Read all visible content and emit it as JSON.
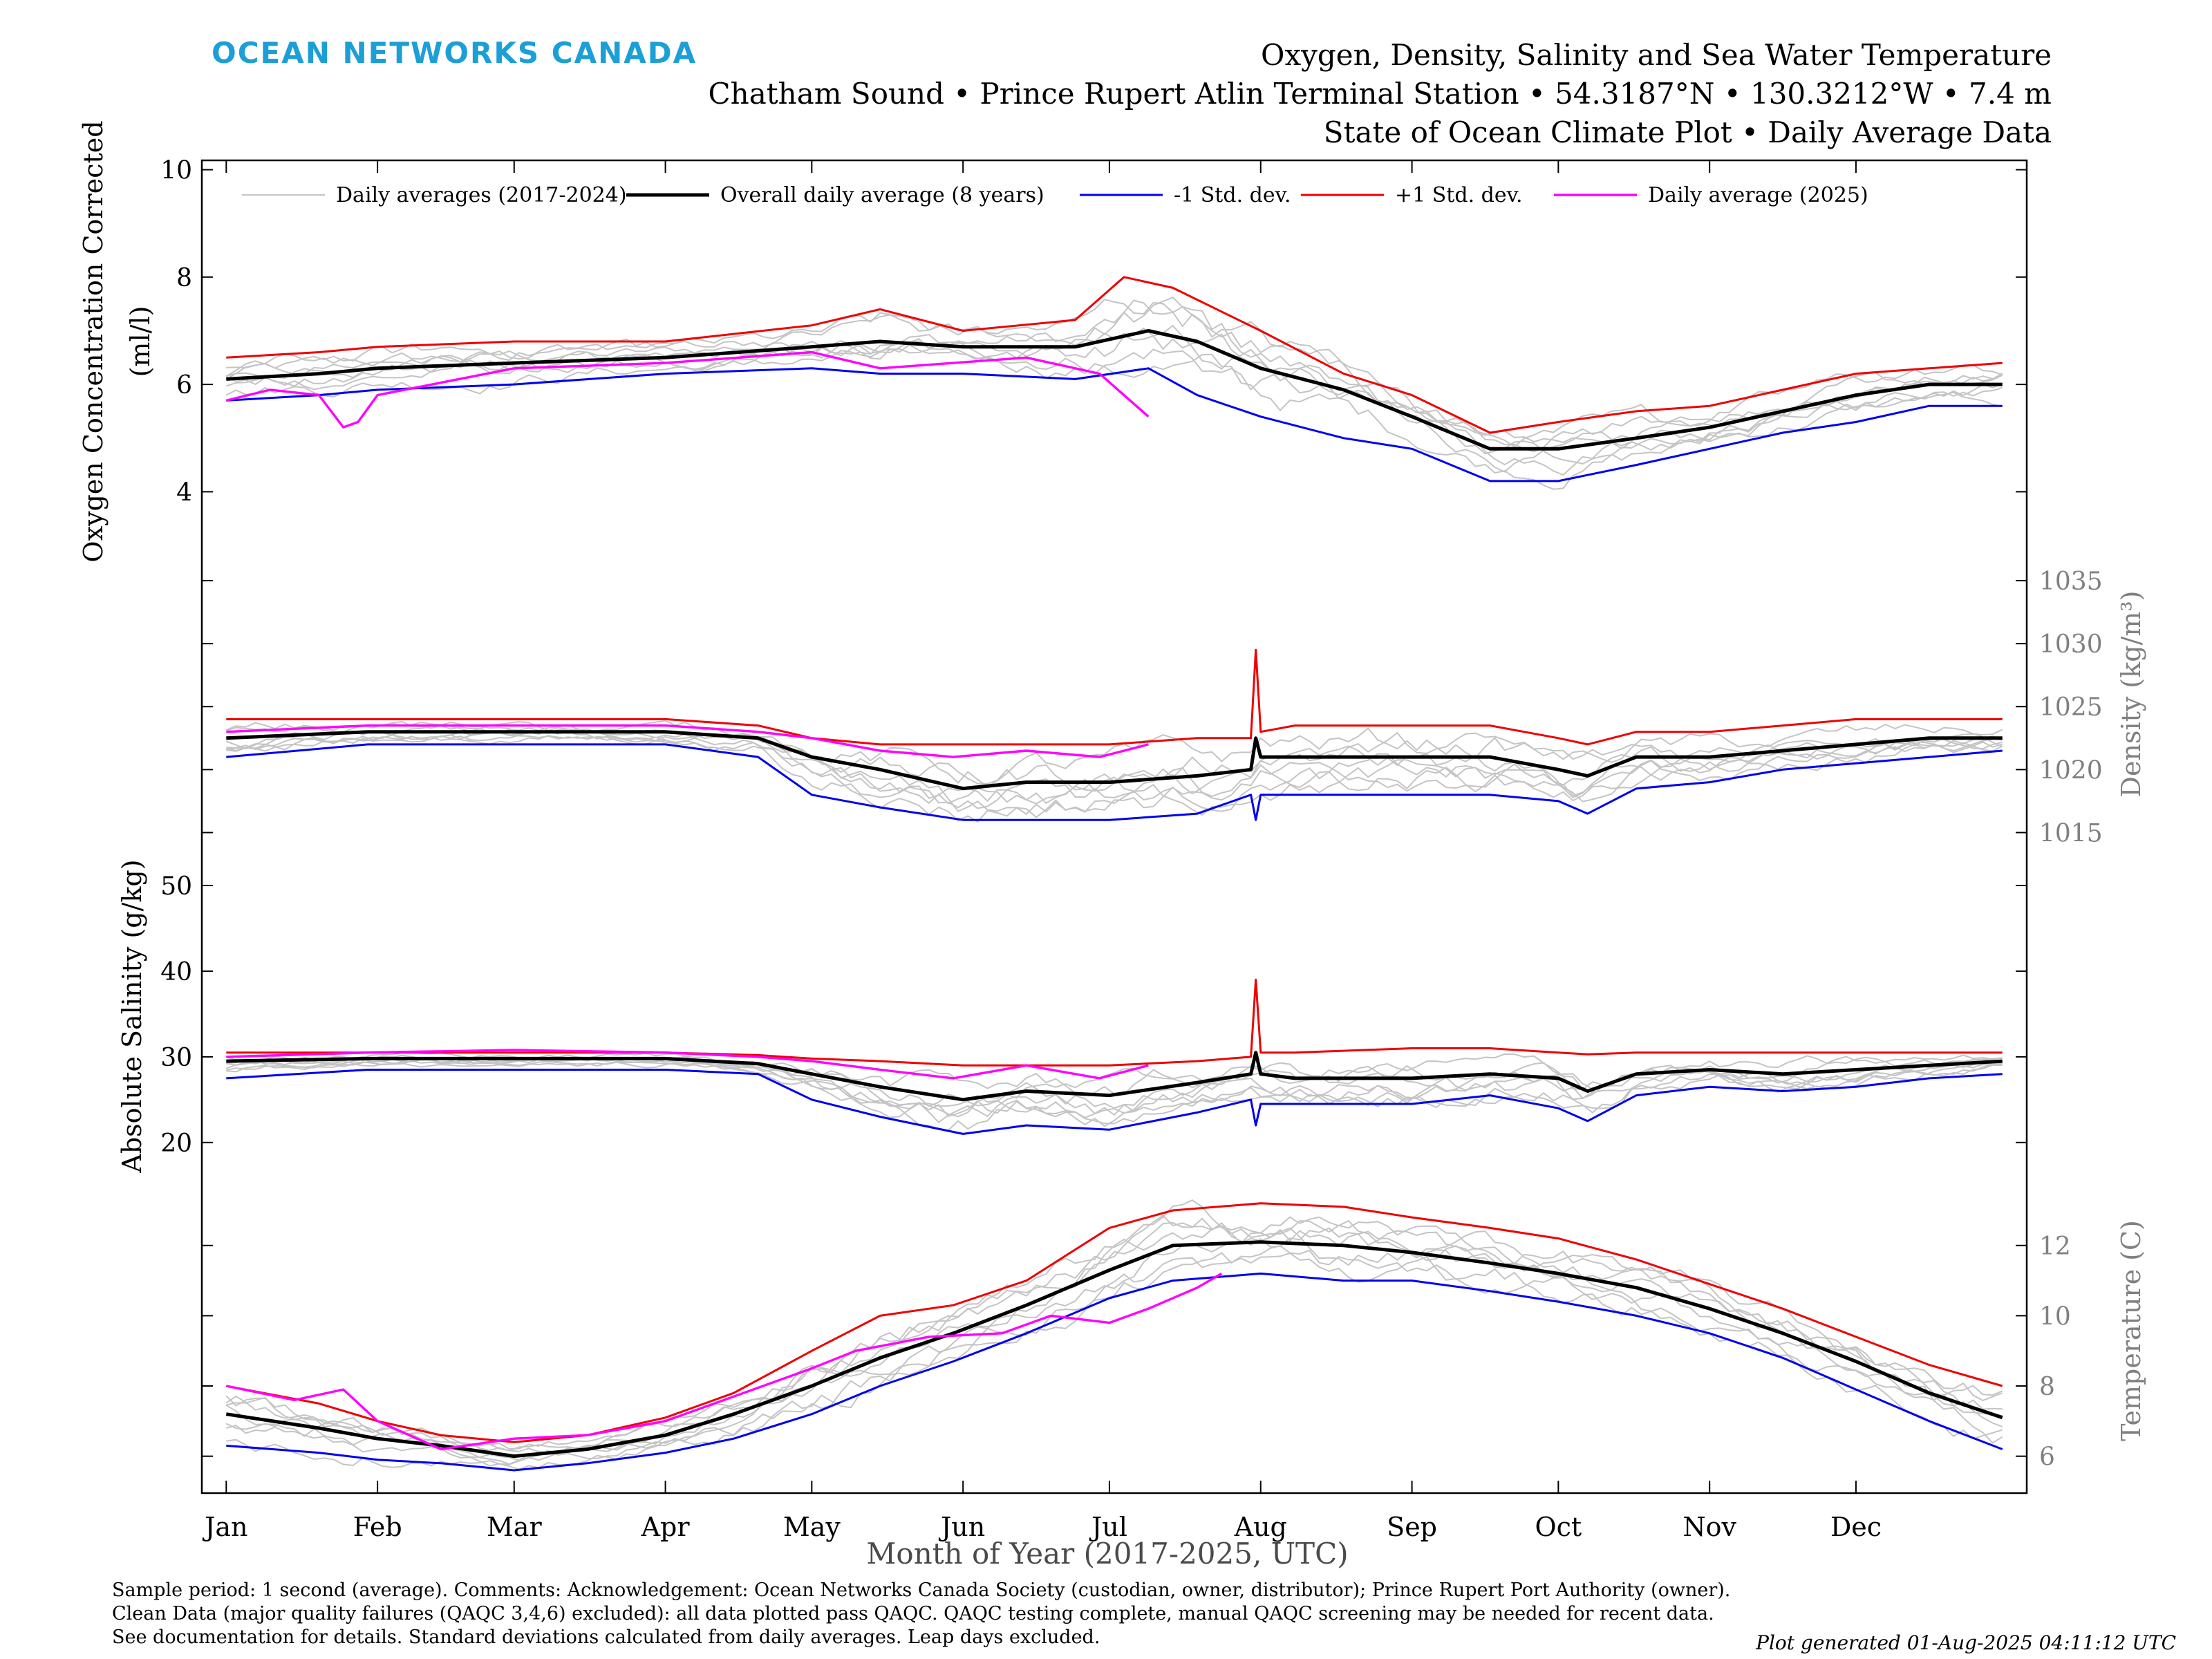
{
  "header": {
    "logo": "OCEAN NETWORKS CANADA",
    "title_line1": "Oxygen, Density, Salinity and Sea Water Temperature",
    "title_line2": "Chatham Sound • Prince Rupert Atlin Terminal Station • 54.3187°N • 130.3212°W • 7.4 m",
    "title_line3": "State of Ocean Climate Plot • Daily Average Data"
  },
  "footer": {
    "line1": "Sample period: 1 second (average). Comments: Acknowledgement: Ocean Networks Canada Society (custodian, owner, distributor); Prince Rupert Port Authority (owner).",
    "line2": "Clean Data (major quality failures (QAQC 3,4,6) excluded): all data plotted pass QAQC. QAQC testing complete, manual QAQC screening may be needed for recent data.",
    "line3": "See documentation for details. Standard deviations calculated from daily averages. Leap days excluded.",
    "generated": "Plot generated 01-Aug-2025 04:11:12 UTC"
  },
  "colors": {
    "historical": "#c4c4c4",
    "mean": "#000000",
    "minus_std": "#0000ee",
    "plus_std": "#ee0000",
    "current": "#ff00ff",
    "right_axis_text": "#808080",
    "logo": "#1c9fd6"
  },
  "chart_data": {
    "type": "line",
    "xlabel": "Month of Year (2017-2025, UTC)",
    "x_ticks": [
      "Jan",
      "Feb",
      "Mar",
      "Apr",
      "May",
      "Jun",
      "Jul",
      "Aug",
      "Sep",
      "Oct",
      "Nov",
      "Dec"
    ],
    "x_tick_days": [
      1,
      32,
      60,
      91,
      121,
      152,
      182,
      213,
      244,
      274,
      305,
      335
    ],
    "xlim": [
      -4,
      370
    ],
    "legend": {
      "placement": "top",
      "entries": [
        "Daily averages (2017-2024)",
        "Overall daily average (8 years)",
        "-1 Std. dev.",
        "+1 Std. dev.",
        "Daily average (2025)"
      ]
    },
    "panels": [
      {
        "id": "oxygen",
        "axis_side": "left",
        "ylabel_line1": "Oxygen Concentration Corrected",
        "ylabel_line2": "(ml/l)",
        "yticks": [
          4,
          6,
          8,
          10
        ],
        "ylim": [
          3.4,
          10.2
        ],
        "series": [
          {
            "role": "mean",
            "x": [
              1,
              20,
              32,
              60,
              91,
              121,
              135,
              152,
              175,
              190,
              200,
              213,
              230,
              244,
              260,
              274,
              290,
              305,
              320,
              335,
              350,
              365
            ],
            "y": [
              6.1,
              6.2,
              6.3,
              6.4,
              6.5,
              6.7,
              6.8,
              6.7,
              6.7,
              7.0,
              6.8,
              6.3,
              5.9,
              5.4,
              4.8,
              4.8,
              5.0,
              5.2,
              5.5,
              5.8,
              6.0,
              6.0
            ]
          },
          {
            "role": "minus_std",
            "x": [
              1,
              20,
              32,
              60,
              91,
              121,
              135,
              152,
              175,
              190,
              200,
              213,
              230,
              244,
              260,
              274,
              290,
              305,
              320,
              335,
              350,
              365
            ],
            "y": [
              5.7,
              5.8,
              5.9,
              6.0,
              6.2,
              6.3,
              6.2,
              6.2,
              6.1,
              6.3,
              5.8,
              5.4,
              5.0,
              4.8,
              4.2,
              4.2,
              4.5,
              4.8,
              5.1,
              5.3,
              5.6,
              5.6
            ]
          },
          {
            "role": "plus_std",
            "x": [
              1,
              20,
              32,
              60,
              91,
              121,
              135,
              152,
              175,
              185,
              195,
              213,
              230,
              244,
              260,
              274,
              290,
              305,
              320,
              335,
              350,
              365
            ],
            "y": [
              6.5,
              6.6,
              6.7,
              6.8,
              6.8,
              7.1,
              7.4,
              7.0,
              7.2,
              8.0,
              7.8,
              7.0,
              6.2,
              5.8,
              5.1,
              5.3,
              5.5,
              5.6,
              5.9,
              6.2,
              6.3,
              6.4
            ]
          },
          {
            "role": "current",
            "x": [
              1,
              10,
              20,
              25,
              28,
              32,
              60,
              91,
              121,
              135,
              150,
              165,
              180,
              190
            ],
            "y": [
              5.7,
              5.9,
              5.8,
              5.2,
              5.3,
              5.8,
              6.3,
              6.4,
              6.6,
              6.3,
              6.4,
              6.5,
              6.2,
              5.4
            ]
          }
        ]
      },
      {
        "id": "density",
        "axis_side": "right",
        "ylabel": "Density (kg/m³)",
        "yticks": [
          1015,
          1020,
          1025,
          1030,
          1035
        ],
        "ylim": [
          1012.5,
          1039.5
        ],
        "series": [
          {
            "role": "mean",
            "x": [
              1,
              30,
              60,
              91,
              110,
              121,
              135,
              152,
              165,
              182,
              200,
              211,
              212,
              213,
              220,
              244,
              260,
              274,
              280,
              290,
              305,
              320,
              335,
              350,
              365
            ],
            "y": [
              1022.5,
              1023,
              1023,
              1023,
              1022.5,
              1021,
              1020,
              1018.5,
              1019,
              1019,
              1019.5,
              1020,
              1022.5,
              1021,
              1021,
              1021,
              1021,
              1020,
              1019.5,
              1021,
              1021,
              1021.5,
              1022,
              1022.5,
              1022.5
            ]
          },
          {
            "role": "minus_std",
            "x": [
              1,
              30,
              60,
              91,
              110,
              121,
              135,
              152,
              165,
              182,
              200,
              211,
              212,
              213,
              220,
              244,
              260,
              274,
              280,
              290,
              305,
              320,
              335,
              350,
              365
            ],
            "y": [
              1021,
              1022,
              1022,
              1022,
              1021,
              1018,
              1017,
              1016,
              1016,
              1016,
              1016.5,
              1018,
              1016,
              1018,
              1018,
              1018,
              1018,
              1017.5,
              1016.5,
              1018.5,
              1019,
              1020,
              1020.5,
              1021,
              1021.5
            ]
          },
          {
            "role": "plus_std",
            "x": [
              1,
              30,
              60,
              91,
              110,
              121,
              135,
              152,
              165,
              182,
              200,
              211,
              212,
              213,
              220,
              244,
              260,
              274,
              280,
              290,
              305,
              320,
              335,
              350,
              365
            ],
            "y": [
              1024,
              1024,
              1024,
              1024,
              1023.5,
              1022.5,
              1022,
              1022,
              1022,
              1022,
              1022.5,
              1022.5,
              1029.5,
              1023,
              1023.5,
              1023.5,
              1023.5,
              1022.5,
              1022,
              1023,
              1023,
              1023.5,
              1024,
              1024,
              1024
            ]
          },
          {
            "role": "current",
            "x": [
              1,
              30,
              60,
              91,
              110,
              121,
              135,
              150,
              165,
              180,
              190
            ],
            "y": [
              1023,
              1023.5,
              1023.5,
              1023.5,
              1023,
              1022.5,
              1021.5,
              1021,
              1021.5,
              1021,
              1022
            ]
          }
        ]
      },
      {
        "id": "salinity",
        "axis_side": "left",
        "ylabel": "Absolute Salinity (g/kg)",
        "yticks": [
          20,
          30,
          40,
          50
        ],
        "ylim": [
          17,
          52.5
        ],
        "series": [
          {
            "role": "mean",
            "x": [
              1,
              30,
              60,
              91,
              110,
              121,
              135,
              152,
              165,
              182,
              200,
              211,
              212,
              213,
              220,
              244,
              260,
              274,
              280,
              290,
              305,
              320,
              335,
              350,
              365
            ],
            "y": [
              29.5,
              29.8,
              29.8,
              29.8,
              29.2,
              28,
              26.5,
              25,
              26,
              25.5,
              27,
              28,
              30.5,
              28,
              27.5,
              27.5,
              28,
              27.5,
              26,
              28,
              28.5,
              28,
              28.5,
              29,
              29.5
            ]
          },
          {
            "role": "minus_std",
            "x": [
              1,
              30,
              60,
              91,
              110,
              121,
              135,
              152,
              165,
              182,
              200,
              211,
              212,
              213,
              220,
              244,
              260,
              274,
              280,
              290,
              305,
              320,
              335,
              350,
              365
            ],
            "y": [
              27.5,
              28.5,
              28.5,
              28.5,
              28,
              25,
              23,
              21,
              22,
              21.5,
              23.5,
              25,
              22,
              24.5,
              24.5,
              24.5,
              25.5,
              24,
              22.5,
              25.5,
              26.5,
              26,
              26.5,
              27.5,
              28
            ]
          },
          {
            "role": "plus_std",
            "x": [
              1,
              30,
              60,
              91,
              110,
              121,
              135,
              152,
              165,
              182,
              200,
              211,
              212,
              213,
              220,
              244,
              260,
              274,
              280,
              290,
              305,
              320,
              335,
              350,
              365
            ],
            "y": [
              30.5,
              30.5,
              30.5,
              30.5,
              30.2,
              29.8,
              29.5,
              29,
              29,
              29,
              29.5,
              30,
              39,
              30.5,
              30.5,
              31,
              31,
              30.5,
              30.3,
              30.5,
              30.5,
              30.5,
              30.5,
              30.5,
              30.5
            ]
          },
          {
            "role": "current",
            "x": [
              1,
              30,
              60,
              91,
              110,
              121,
              135,
              150,
              165,
              180,
              190
            ],
            "y": [
              30,
              30.5,
              30.8,
              30.5,
              30,
              29.5,
              28.5,
              27.5,
              29,
              27.5,
              29
            ]
          }
        ]
      },
      {
        "id": "temperature",
        "axis_side": "right",
        "ylabel": "Temperature (C)",
        "yticks": [
          6,
          8,
          10,
          12
        ],
        "ylim": [
          4.95,
          14.2
        ],
        "series": [
          {
            "role": "mean",
            "x": [
              1,
              20,
              32,
              45,
              60,
              75,
              91,
              105,
              121,
              135,
              150,
              165,
              182,
              195,
              213,
              230,
              244,
              260,
              274,
              290,
              305,
              320,
              335,
              350,
              365
            ],
            "y": [
              7.2,
              6.8,
              6.5,
              6.3,
              6.0,
              6.2,
              6.6,
              7.2,
              8.0,
              8.8,
              9.5,
              10.3,
              11.3,
              12.0,
              12.1,
              12.0,
              11.8,
              11.5,
              11.2,
              10.8,
              10.2,
              9.5,
              8.7,
              7.8,
              7.1
            ]
          },
          {
            "role": "minus_std",
            "x": [
              1,
              20,
              32,
              45,
              60,
              75,
              91,
              105,
              121,
              135,
              150,
              165,
              182,
              195,
              213,
              230,
              244,
              260,
              274,
              290,
              305,
              320,
              335,
              350,
              365
            ],
            "y": [
              6.3,
              6.1,
              5.9,
              5.8,
              5.6,
              5.8,
              6.1,
              6.5,
              7.2,
              8.0,
              8.7,
              9.5,
              10.5,
              11.0,
              11.2,
              11.0,
              11.0,
              10.7,
              10.4,
              10.0,
              9.5,
              8.8,
              7.9,
              7.0,
              6.2
            ]
          },
          {
            "role": "plus_std",
            "x": [
              1,
              20,
              32,
              45,
              60,
              75,
              91,
              105,
              121,
              135,
              150,
              165,
              182,
              195,
              213,
              230,
              244,
              260,
              274,
              290,
              305,
              320,
              335,
              350,
              365
            ],
            "y": [
              8.0,
              7.5,
              7.0,
              6.6,
              6.4,
              6.6,
              7.1,
              7.8,
              9.0,
              10.0,
              10.3,
              11.0,
              12.5,
              13.0,
              13.2,
              13.1,
              12.8,
              12.5,
              12.2,
              11.6,
              10.9,
              10.2,
              9.4,
              8.6,
              8.0
            ]
          },
          {
            "role": "current",
            "x": [
              1,
              15,
              25,
              32,
              45,
              60,
              75,
              91,
              105,
              121,
              130,
              145,
              160,
              170,
              182,
              190,
              200,
              205
            ],
            "y": [
              8.0,
              7.6,
              7.9,
              7.0,
              6.2,
              6.5,
              6.6,
              7.0,
              7.7,
              8.5,
              9.0,
              9.4,
              9.5,
              10.0,
              9.8,
              10.2,
              10.8,
              11.2
            ]
          }
        ]
      }
    ]
  }
}
